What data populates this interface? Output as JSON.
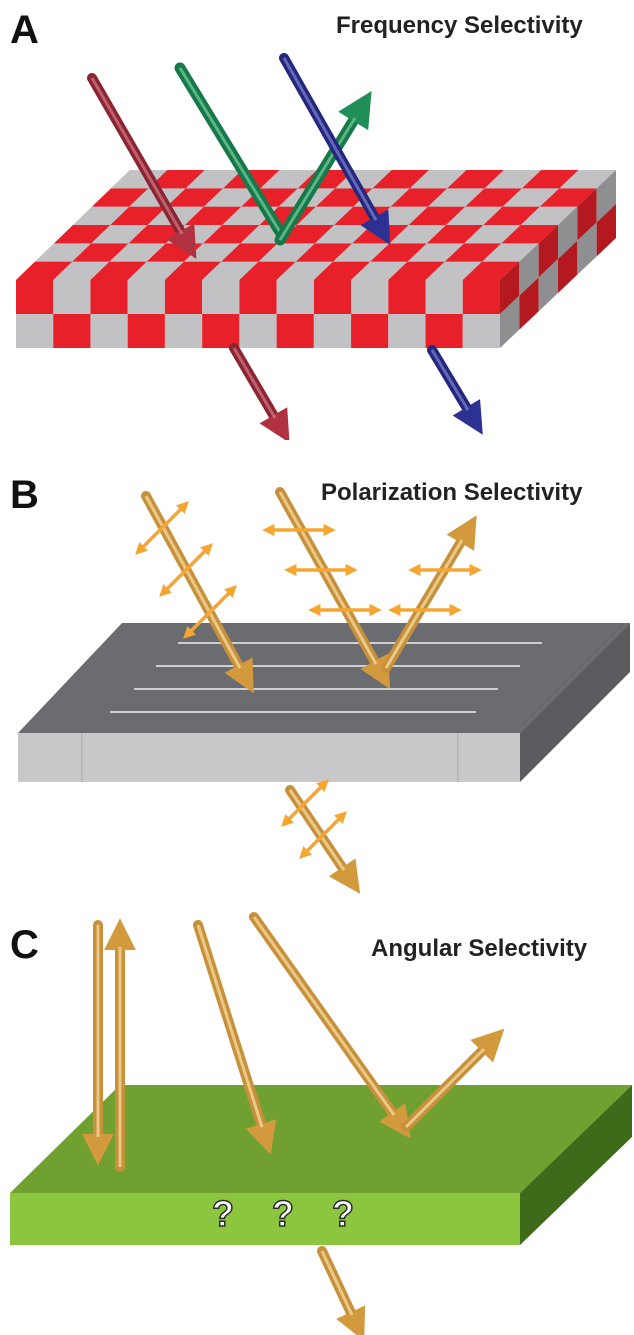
{
  "figure": {
    "panels": [
      {
        "letter": "A",
        "title": "Frequency Selectivity"
      },
      {
        "letter": "B",
        "title": "Polarization Selectivity"
      },
      {
        "letter": "C",
        "title": "Angular Selectivity",
        "surface_label": "? ? ?"
      }
    ]
  },
  "colors": {
    "checker_red": "#e8202a",
    "checker_grey": "#c2c2c4",
    "red_beam": "#9e2f3a",
    "green_beam": "#1e8a54",
    "blue_beam": "#2b2f8e",
    "polarizer_top": "#6b6c6f",
    "polarizer_front": "#c8c8ca",
    "polarization_arrow": "#f5a530",
    "gold_beam": "#d4a24a",
    "slab_green_top": "#6fa030",
    "slab_green_front": "#8cc63f",
    "slab_green_side": "#3e6b19"
  },
  "icons": [
    "red-beam-icon",
    "green-beam-icon",
    "blue-beam-icon",
    "polarization-double-arrow-icon",
    "gold-beam-icon"
  ]
}
